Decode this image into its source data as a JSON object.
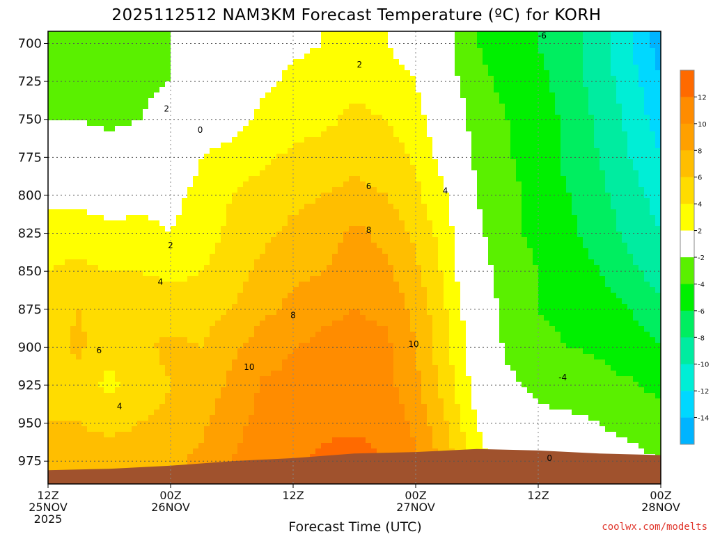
{
  "chart_data": {
    "type": "heatmap",
    "title": "2025112512 NAM3KM Forecast Temperature (ºC) for KORH",
    "xlabel": "Forecast Time (UTC)",
    "ylabel": "",
    "x_ticks": [
      {
        "hour": 0,
        "lines": [
          "12Z",
          "25NOV",
          "2025"
        ]
      },
      {
        "hour": 12,
        "lines": [
          "00Z",
          "26NOV"
        ]
      },
      {
        "hour": 24,
        "lines": [
          "12Z"
        ]
      },
      {
        "hour": 36,
        "lines": [
          "00Z",
          "27NOV"
        ]
      },
      {
        "hour": 48,
        "lines": [
          "12Z"
        ]
      },
      {
        "hour": 60,
        "lines": [
          "00Z",
          "28NOV"
        ]
      }
    ],
    "x_range_hours": [
      0,
      60
    ],
    "y_levels": [
      "700",
      "725",
      "750",
      "775",
      "800",
      "825",
      "850",
      "875",
      "900",
      "925",
      "950",
      "975"
    ],
    "y_range_hpa": [
      692,
      990
    ],
    "grid": true,
    "colorbar": {
      "labels": [
        "12",
        "10",
        "8",
        "6",
        "4",
        "2",
        "-2",
        "-4",
        "-6",
        "-8",
        "-10",
        "-12",
        "-14"
      ],
      "bands": [
        {
          "lo": 12,
          "hi": 14,
          "color": "#ff6a00"
        },
        {
          "lo": 10,
          "hi": 12,
          "color": "#ff8c00"
        },
        {
          "lo": 8,
          "hi": 10,
          "color": "#ffa000"
        },
        {
          "lo": 6,
          "hi": 8,
          "color": "#ffbe00"
        },
        {
          "lo": 4,
          "hi": 6,
          "color": "#ffdc00"
        },
        {
          "lo": 2,
          "hi": 4,
          "color": "#ffff00"
        },
        {
          "lo": -2,
          "hi": 2,
          "color": "#ffffff"
        },
        {
          "lo": -4,
          "hi": -2,
          "color": "#5af000"
        },
        {
          "lo": -6,
          "hi": -4,
          "color": "#00f000"
        },
        {
          "lo": -8,
          "hi": -6,
          "color": "#00ee60"
        },
        {
          "lo": -10,
          "hi": -8,
          "color": "#00eca0"
        },
        {
          "lo": -12,
          "hi": -10,
          "color": "#00eed6"
        },
        {
          "lo": -14,
          "hi": -12,
          "color": "#00d8ff"
        },
        {
          "lo": -16,
          "hi": -14,
          "color": "#00b4ff"
        }
      ]
    },
    "temperature_field": {
      "times_hours": [
        0,
        3,
        6,
        9,
        12,
        15,
        18,
        21,
        24,
        27,
        30,
        33,
        36,
        39,
        42,
        45,
        48,
        51,
        54,
        57,
        60
      ],
      "levels_hpa": [
        700,
        725,
        750,
        775,
        800,
        825,
        850,
        875,
        900,
        925,
        950,
        975
      ],
      "rows_c": [
        [
          -3,
          -3,
          -4,
          -3,
          -2,
          -1,
          0,
          0.5,
          1.5,
          2,
          2.5,
          2,
          1,
          -1.5,
          -4,
          -5,
          -6,
          -7,
          -9,
          -12,
          -15
        ],
        [
          -3,
          -3,
          -3,
          -2.5,
          -2,
          -0.5,
          0.5,
          1.5,
          2.5,
          3,
          3.5,
          3,
          2,
          -1,
          -3.5,
          -4.5,
          -5.5,
          -7,
          -9,
          -11,
          -14
        ],
        [
          -2,
          -2,
          -2.5,
          -2,
          -1,
          0,
          1,
          2.5,
          3,
          3.5,
          4.5,
          4,
          3,
          0,
          -3,
          -4,
          -5,
          -6.5,
          -8.5,
          -10.5,
          -13
        ],
        [
          0,
          0,
          -1,
          -0.5,
          0.5,
          2,
          3,
          3.5,
          4.5,
          5,
          5.5,
          5,
          3.8,
          1,
          -2.5,
          -3.8,
          -5,
          -6.5,
          -8,
          -10,
          -12
        ],
        [
          1.5,
          1.5,
          1,
          1.5,
          1.5,
          2.5,
          4,
          5,
          5.5,
          6,
          6.5,
          6,
          4.5,
          2,
          -2,
          -3.5,
          -4.5,
          -6,
          -7.5,
          -9,
          -11
        ],
        [
          3,
          3,
          2.5,
          2.5,
          2,
          3,
          4.5,
          5.5,
          6.5,
          7,
          8.5,
          7.5,
          5.5,
          3,
          -1.5,
          -3.5,
          -4.5,
          -5.5,
          -7,
          -8.5,
          -10
        ],
        [
          4,
          4.5,
          4,
          4,
          3.5,
          4,
          5,
          6.5,
          7.5,
          8,
          8.8,
          8.5,
          6.5,
          3.5,
          -1,
          -3,
          -4,
          -5,
          -6,
          -7.5,
          -9
        ],
        [
          5,
          6,
          5,
          5.5,
          5,
          5.2,
          6,
          7.5,
          8.5,
          9.5,
          10,
          9.5,
          7.5,
          4,
          0,
          -3,
          -4,
          -4.5,
          -5,
          -6,
          -7.5
        ],
        [
          5,
          6.5,
          4.5,
          5.5,
          6.5,
          6,
          7.5,
          9,
          10,
          10.5,
          10.8,
          10.5,
          8,
          4.5,
          0.5,
          -2.5,
          -3.5,
          -4,
          -4.2,
          -5,
          -6
        ],
        [
          5.5,
          5,
          3.5,
          5,
          6,
          6.5,
          8.5,
          10.2,
          10.5,
          11,
          11,
          10.8,
          8.5,
          5,
          1,
          -1.5,
          -2.5,
          -3,
          -3.5,
          -3.8,
          -4.5
        ],
        [
          6,
          6,
          5.5,
          6,
          6.5,
          7.5,
          9.5,
          10.5,
          11,
          11.5,
          11.8,
          11.5,
          9.5,
          6,
          2,
          0,
          -1.5,
          -1.5,
          -2,
          -2.5,
          -3
        ],
        [
          6.5,
          6.5,
          7,
          7,
          7.5,
          8.5,
          10,
          11,
          11.5,
          12.5,
          12.5,
          12,
          10.5,
          7,
          3,
          0.5,
          -0.5,
          -0.8,
          -1.2,
          -1.5,
          -2
        ]
      ]
    },
    "terrain": {
      "color": "#a0522d",
      "surface_hpa_by_hour": [
        {
          "hour": 0,
          "hpa": 981
        },
        {
          "hour": 6,
          "hpa": 980
        },
        {
          "hour": 12,
          "hpa": 978
        },
        {
          "hour": 18,
          "hpa": 975
        },
        {
          "hour": 24,
          "hpa": 973
        },
        {
          "hour": 30,
          "hpa": 970
        },
        {
          "hour": 36,
          "hpa": 969
        },
        {
          "hour": 42,
          "hpa": 967
        },
        {
          "hour": 48,
          "hpa": 968
        },
        {
          "hour": 54,
          "hpa": 970
        },
        {
          "hour": 60,
          "hpa": 971
        }
      ]
    },
    "contour_labels": [
      {
        "text": "2",
        "hour": 30.5,
        "hpa": 714
      },
      {
        "text": "6",
        "hour": 31.4,
        "hpa": 794
      },
      {
        "text": "8",
        "hour": 31.4,
        "hpa": 823
      },
      {
        "text": "4",
        "hour": 38.9,
        "hpa": 797
      },
      {
        "text": "10",
        "hour": 35.8,
        "hpa": 898
      },
      {
        "text": "8",
        "hour": 24.0,
        "hpa": 879
      },
      {
        "text": "10",
        "hour": 19.7,
        "hpa": 913
      },
      {
        "text": "2",
        "hour": 11.6,
        "hpa": 743
      },
      {
        "text": "0",
        "hour": 14.9,
        "hpa": 757
      },
      {
        "text": "2",
        "hour": 12.0,
        "hpa": 833
      },
      {
        "text": "4",
        "hour": 11.0,
        "hpa": 857
      },
      {
        "text": "6",
        "hour": 5.0,
        "hpa": 902
      },
      {
        "text": "4",
        "hour": 7.0,
        "hpa": 939
      },
      {
        "text": "-6",
        "hour": 48.4,
        "hpa": 695
      },
      {
        "text": "-4",
        "hour": 50.4,
        "hpa": 920
      },
      {
        "text": "0",
        "hour": 49.1,
        "hpa": 973
      }
    ],
    "credit": "coolwx.com/modelts"
  }
}
